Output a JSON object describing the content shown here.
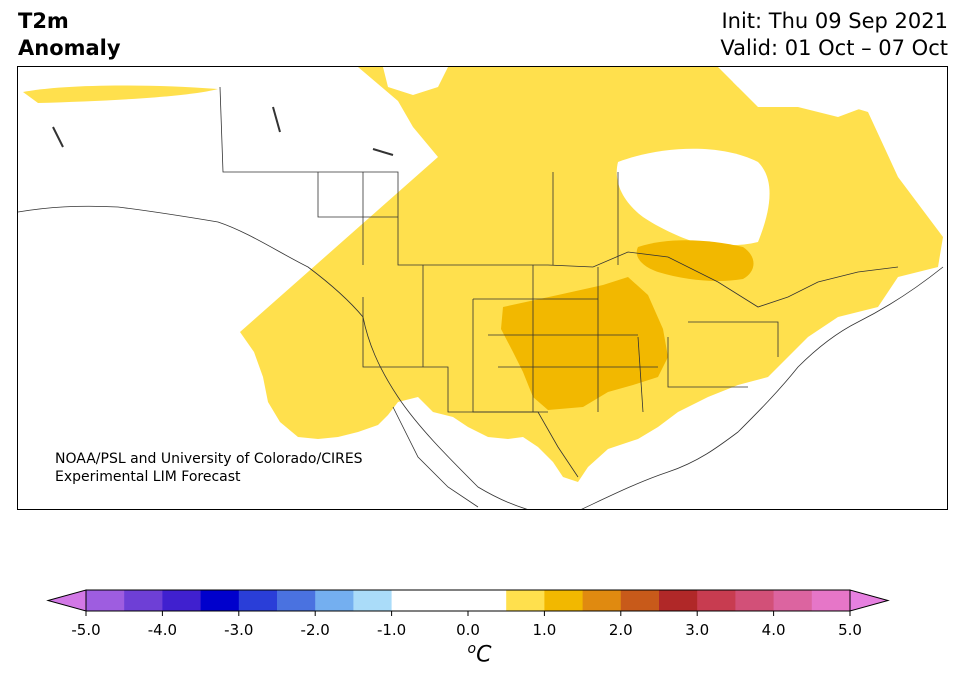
{
  "header": {
    "title_line1": "T2m",
    "title_line2": "Anomaly",
    "init_label": "Init: Thu 09 Sep 2021",
    "valid_label": "Valid: 01 Oct – 07 Oct"
  },
  "map": {
    "credit_line1": "NOAA/PSL and University of Colorado/CIRES",
    "credit_line2": "Experimental LIM Forecast",
    "anomaly_colors": {
      "0.5_to_1.0": "#ffe04d",
      "1.0_to_1.5": "#f2b800",
      "background": "#ffffff",
      "borders": "#333333"
    }
  },
  "colorbar": {
    "unit_base": "C",
    "unit_sup": "o",
    "tick_labels": [
      "-5.0",
      "-4.0",
      "-3.0",
      "-2.0",
      "-1.0",
      "0.0",
      "1.0",
      "2.0",
      "3.0",
      "4.0",
      "5.0"
    ],
    "levels": [
      -5.0,
      -4.5,
      -4.0,
      -3.5,
      -3.0,
      -2.5,
      -2.0,
      -1.5,
      -1.0,
      -0.5,
      0.5,
      1.0,
      1.5,
      2.0,
      2.5,
      3.0,
      3.5,
      4.0,
      4.5,
      5.0
    ],
    "colors": [
      "#9e5de0",
      "#6e3fd6",
      "#4020cf",
      "#0000cc",
      "#2a3ed8",
      "#4a72e0",
      "#74aff0",
      "#aadcf9",
      "#ffffff",
      "#ffffff",
      "#ffe04d",
      "#f2b800",
      "#e08a10",
      "#c85a1a",
      "#b02828",
      "#c83c50",
      "#d25078",
      "#dc64a0",
      "#e676c8"
    ],
    "under_color": "#d278e6",
    "over_color": "#e680e0"
  }
}
